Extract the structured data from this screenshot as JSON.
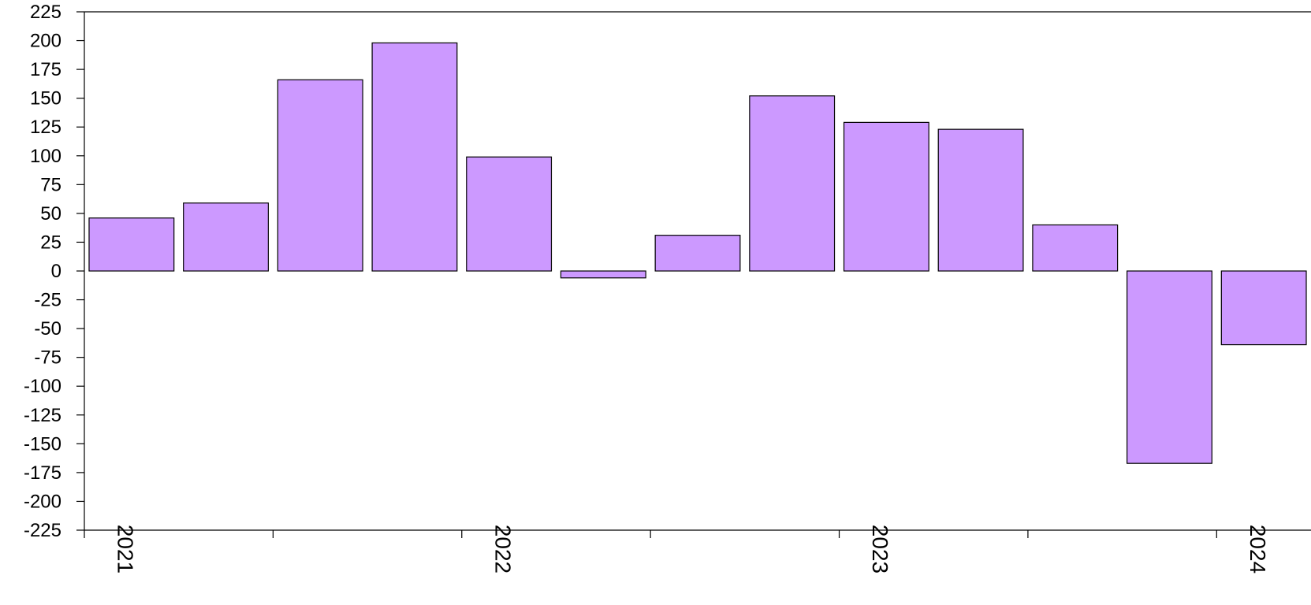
{
  "chart_data": {
    "type": "bar",
    "categories": [
      "2021 Q1",
      "2021 Q2",
      "2021 Q3",
      "2021 Q4",
      "2022 Q1",
      "2022 Q2",
      "2022 Q3",
      "2022 Q4",
      "2023 Q1",
      "2023 Q2",
      "2023 Q3",
      "2023 Q4",
      "2024 Q1"
    ],
    "values": [
      46,
      59,
      166,
      198,
      99,
      -6,
      31,
      152,
      129,
      123,
      40,
      -167,
      -64
    ],
    "ylim": [
      -225,
      225
    ],
    "yticks": [
      225,
      200,
      175,
      150,
      125,
      100,
      75,
      50,
      25,
      0,
      -25,
      -50,
      -75,
      -100,
      -125,
      -150,
      -175,
      -200,
      -225
    ],
    "xtick_labels": [
      "2021",
      "2022",
      "2023",
      "2024"
    ],
    "bar_color": "#cc99ff",
    "bar_edge_color": "#000000",
    "grid": false,
    "legend": "none"
  }
}
